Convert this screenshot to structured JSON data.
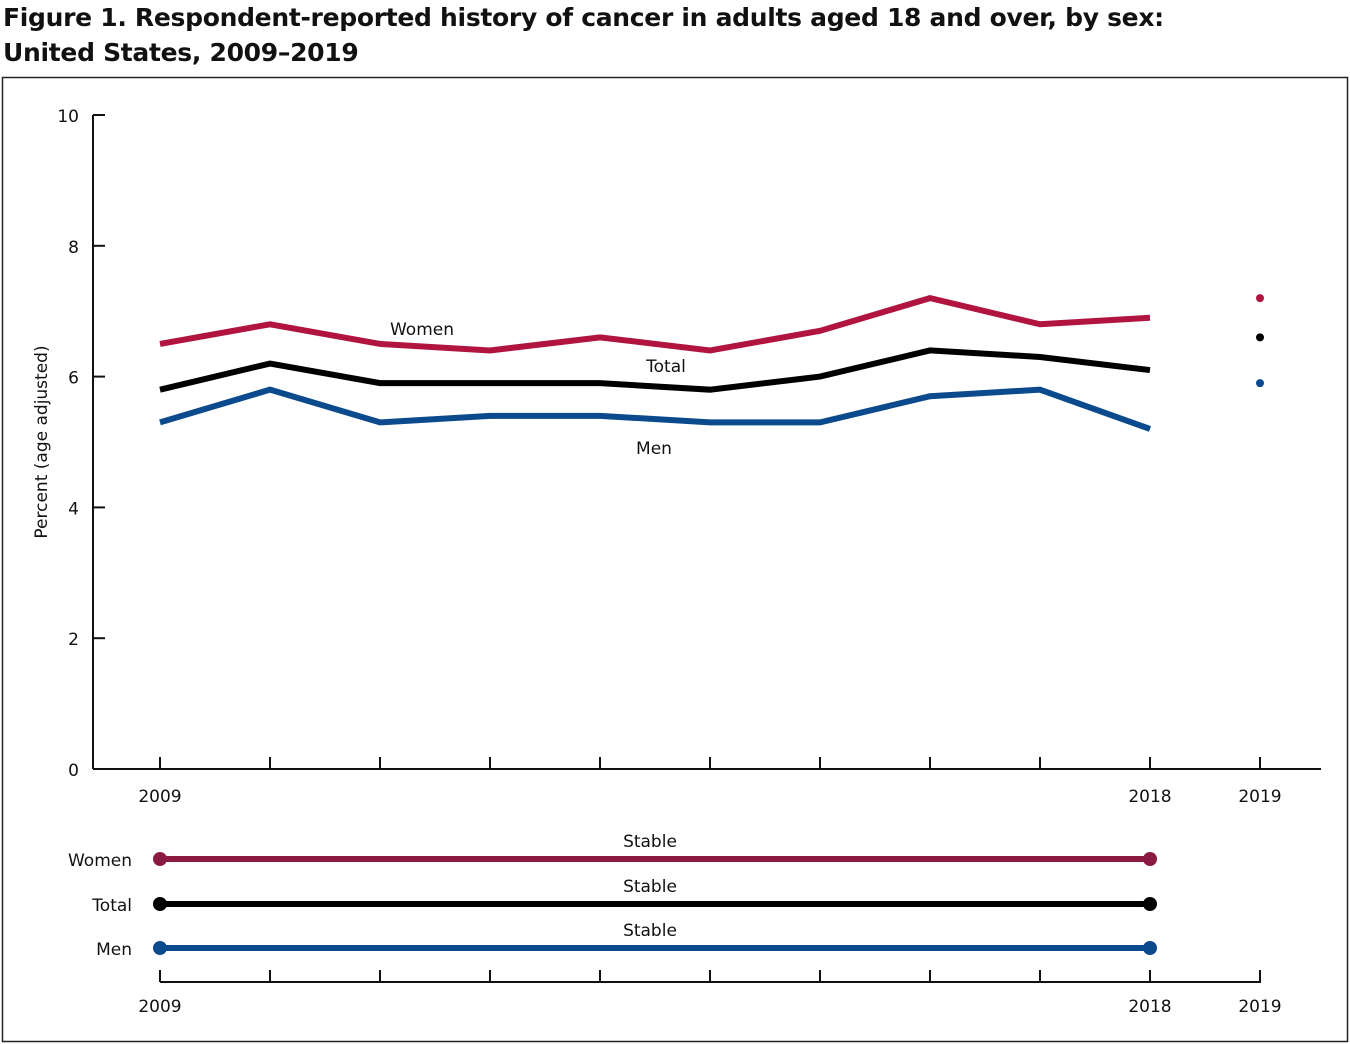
{
  "title_line1": "Figure 1. Respondent-reported history of cancer in adults aged 18 and over, by sex:",
  "title_line2": "United States, 2009–2019",
  "chart_data": {
    "type": "line",
    "ylabel": "Percent (age adjusted)",
    "xlabel": "",
    "ylim": [
      0,
      10
    ],
    "yticks": [
      0,
      2,
      4,
      6,
      8,
      10
    ],
    "x": [
      2009,
      2010,
      2011,
      2012,
      2013,
      2014,
      2015,
      2016,
      2017,
      2018
    ],
    "x_tick_labels": [
      "2009",
      "2018",
      "2019"
    ],
    "grid": false,
    "series": [
      {
        "name": "Women",
        "color": "#b0143f",
        "values": [
          6.5,
          6.8,
          6.5,
          6.4,
          6.6,
          6.4,
          6.7,
          7.2,
          6.8,
          6.9
        ],
        "value_2019": 7.2
      },
      {
        "name": "Total",
        "color": "#000000",
        "values": [
          5.8,
          6.2,
          5.9,
          5.9,
          5.9,
          5.8,
          6.0,
          6.4,
          6.3,
          6.1
        ],
        "value_2019": 6.6
      },
      {
        "name": "Men",
        "color": "#0b4a8c",
        "values": [
          5.3,
          5.8,
          5.3,
          5.4,
          5.4,
          5.3,
          5.3,
          5.7,
          5.8,
          5.2
        ],
        "value_2019": 5.9
      }
    ],
    "trends": [
      {
        "name": "Women",
        "label": "Stable",
        "color": "#8a1a42",
        "start": 2009,
        "end": 2018
      },
      {
        "name": "Total",
        "label": "Stable",
        "color": "#000000",
        "start": 2009,
        "end": 2018
      },
      {
        "name": "Men",
        "label": "Stable",
        "color": "#0b4a8c",
        "start": 2009,
        "end": 2018
      }
    ]
  }
}
